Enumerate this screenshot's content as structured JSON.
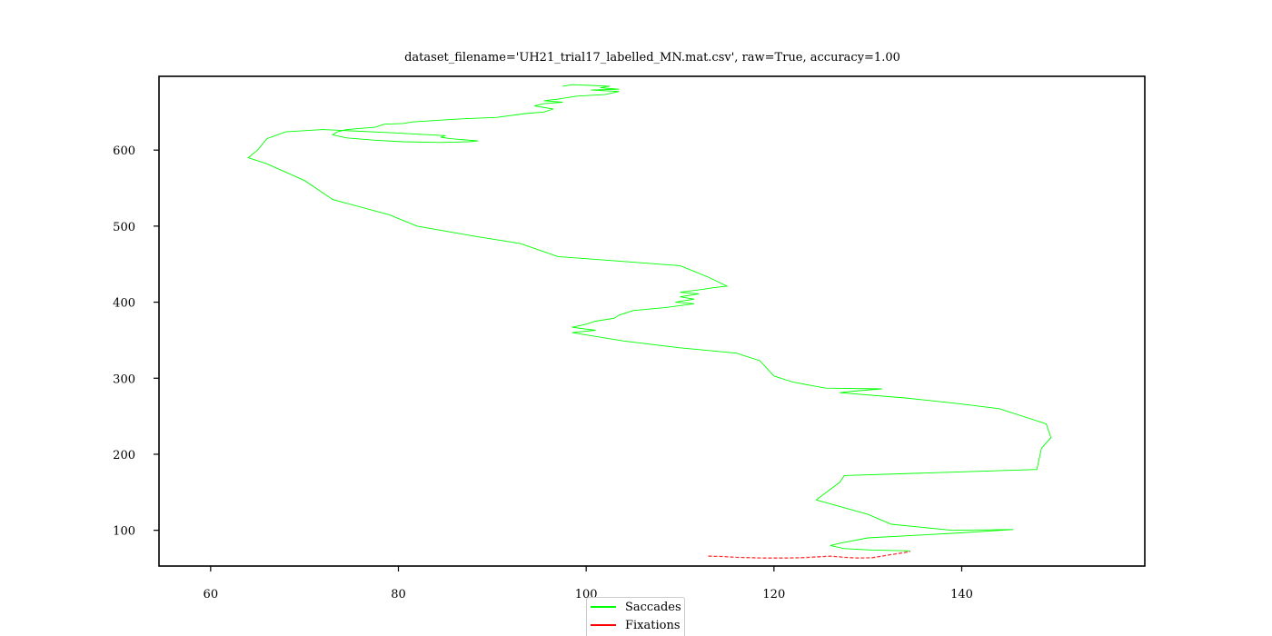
{
  "chart_data": {
    "type": "line",
    "title": "dataset_filename='UH21_trial17_labelled_MN.mat.csv', raw=True, accuracy=1.00",
    "xlabel": "",
    "ylabel": "",
    "xlim": [
      54.5,
      159.5
    ],
    "ylim": [
      53,
      697
    ],
    "x_ticks": [
      60,
      80,
      100,
      120,
      140
    ],
    "y_ticks": [
      100,
      200,
      300,
      400,
      500,
      600
    ],
    "legend": {
      "placement": "bottom-center",
      "entries": [
        "Saccades",
        "Fixations"
      ]
    },
    "colors": {
      "Saccades": "#00ff00",
      "Fixations": "#ff0000"
    },
    "series": [
      {
        "name": "Saccades",
        "color": "#00ff00",
        "points": [
          [
            97.5,
            684
          ],
          [
            98.5,
            686
          ],
          [
            100.5,
            685
          ],
          [
            102.5,
            684
          ],
          [
            101.5,
            682
          ],
          [
            103.5,
            680
          ],
          [
            100.5,
            679
          ],
          [
            103.5,
            677
          ],
          [
            102,
            673
          ],
          [
            99,
            671
          ],
          [
            97,
            667
          ],
          [
            95.5,
            665
          ],
          [
            97.5,
            663
          ],
          [
            95.5,
            661
          ],
          [
            94.5,
            658
          ],
          [
            96.5,
            654
          ],
          [
            95.5,
            650
          ],
          [
            93.5,
            648
          ],
          [
            90.5,
            643
          ],
          [
            86.5,
            641
          ],
          [
            81.5,
            637
          ],
          [
            80.5,
            635
          ],
          [
            78.5,
            634
          ],
          [
            77.5,
            630
          ],
          [
            74.5,
            627
          ],
          [
            73.5,
            624
          ],
          [
            73,
            620
          ],
          [
            74.5,
            616
          ],
          [
            77.5,
            613
          ],
          [
            80.5,
            611
          ],
          [
            84.5,
            610
          ],
          [
            87.5,
            611
          ],
          [
            88.5,
            612
          ],
          [
            85.5,
            615
          ],
          [
            84.5,
            617
          ],
          [
            85,
            619
          ],
          [
            79,
            623
          ],
          [
            72,
            627
          ],
          [
            68,
            624
          ],
          [
            66,
            615
          ],
          [
            65,
            600
          ],
          [
            64,
            590
          ],
          [
            66,
            582
          ],
          [
            70,
            560
          ],
          [
            73,
            535
          ],
          [
            79,
            515
          ],
          [
            82,
            500
          ],
          [
            88,
            487
          ],
          [
            93,
            477
          ],
          [
            97,
            460
          ],
          [
            110,
            448
          ],
          [
            113,
            433
          ],
          [
            115,
            421
          ],
          [
            113.5,
            419
          ],
          [
            112.5,
            417
          ],
          [
            110,
            413
          ],
          [
            112,
            411
          ],
          [
            110,
            407
          ],
          [
            111.5,
            404
          ],
          [
            109.5,
            400
          ],
          [
            111.5,
            398
          ],
          [
            108.5,
            393
          ],
          [
            105,
            389
          ],
          [
            103.5,
            383
          ],
          [
            103,
            379
          ],
          [
            101,
            375
          ],
          [
            100,
            371
          ],
          [
            98.5,
            367
          ],
          [
            101,
            363
          ],
          [
            98.5,
            360
          ],
          [
            104,
            349
          ],
          [
            110,
            340
          ],
          [
            116,
            333
          ],
          [
            118.5,
            323
          ],
          [
            120,
            303
          ],
          [
            122,
            295
          ],
          [
            125.5,
            287
          ],
          [
            131.5,
            286
          ],
          [
            128.5,
            283
          ],
          [
            127,
            281
          ],
          [
            134,
            274
          ],
          [
            140,
            266
          ],
          [
            144,
            260
          ],
          [
            149,
            240
          ],
          [
            149.5,
            222
          ],
          [
            148.5,
            208
          ],
          [
            148,
            180
          ],
          [
            127.5,
            172
          ],
          [
            127,
            163
          ],
          [
            124.5,
            140
          ],
          [
            130,
            121
          ],
          [
            132.5,
            108
          ],
          [
            139,
            100
          ],
          [
            145.5,
            101
          ],
          [
            139,
            96
          ],
          [
            130,
            90
          ],
          [
            127,
            83
          ],
          [
            126,
            80
          ],
          [
            127.5,
            76
          ],
          [
            130.5,
            74
          ],
          [
            134.5,
            73
          ]
        ]
      },
      {
        "name": "Fixations",
        "color": "#ff0000",
        "points": [
          [
            113,
            66
          ],
          [
            114.5,
            65.5
          ],
          [
            116,
            64.5
          ],
          [
            117.5,
            64
          ],
          [
            119,
            63.5
          ],
          [
            121,
            63.5
          ],
          [
            123,
            64
          ],
          [
            124.5,
            65
          ],
          [
            126,
            66
          ],
          [
            127.5,
            64.5
          ],
          [
            129,
            63.5
          ],
          [
            130.5,
            64
          ],
          [
            131.5,
            66
          ],
          [
            132.5,
            68
          ],
          [
            133.5,
            70
          ],
          [
            134.5,
            72
          ]
        ]
      }
    ]
  }
}
